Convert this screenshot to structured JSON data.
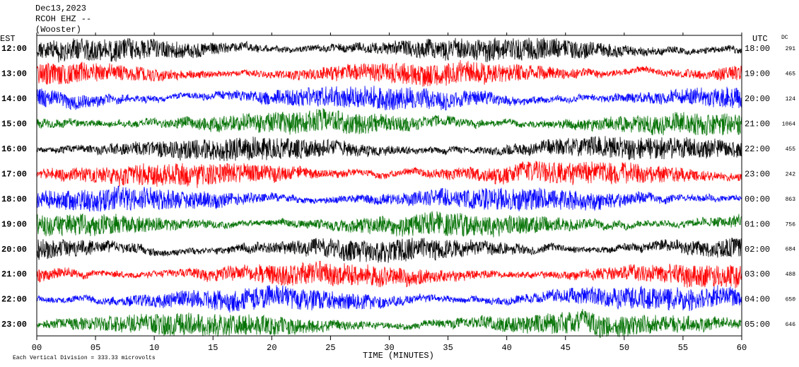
{
  "header": [
    "Dec13,2023",
    "RCOH EHZ --",
    "(Wooster)"
  ],
  "left_zone": "EST",
  "right_zone": "UTC",
  "dc_label": "DC",
  "rows": [
    {
      "left": "12:00",
      "right": "18:00",
      "dc": "291"
    },
    {
      "left": "13:00",
      "right": "19:00",
      "dc": "465"
    },
    {
      "left": "14:00",
      "right": "20:00",
      "dc": "124"
    },
    {
      "left": "15:00",
      "right": "21:00",
      "dc": "1064"
    },
    {
      "left": "16:00",
      "right": "22:00",
      "dc": "455"
    },
    {
      "left": "17:00",
      "right": "23:00",
      "dc": "242"
    },
    {
      "left": "18:00",
      "right": "00:00",
      "dc": "863"
    },
    {
      "left": "19:00",
      "right": "01:00",
      "dc": "756"
    },
    {
      "left": "20:00",
      "right": "02:00",
      "dc": "684"
    },
    {
      "left": "21:00",
      "right": "03:00",
      "dc": "488"
    },
    {
      "left": "22:00",
      "right": "04:00",
      "dc": "650"
    },
    {
      "left": "23:00",
      "right": "05:00",
      "dc": "646"
    }
  ],
  "trace_colors": [
    "#000000",
    "#ff0000",
    "#0000ff",
    "#007000"
  ],
  "x_axis": {
    "label": "TIME (MINUTES)",
    "ticks": [
      "00",
      "05",
      "10",
      "15",
      "20",
      "25",
      "30",
      "35",
      "40",
      "45",
      "50",
      "55",
      "60"
    ]
  },
  "footer": "Each Vertical Division =  333.33 microvolts"
}
